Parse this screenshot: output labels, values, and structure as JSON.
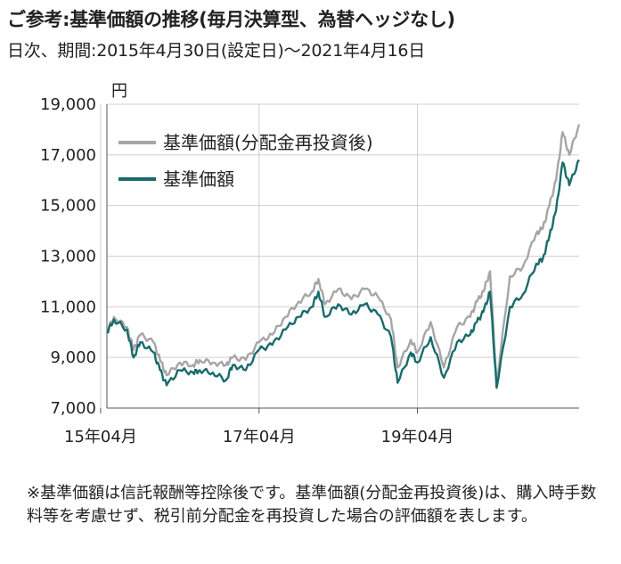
{
  "header": {
    "title": "ご参考:基準価額の推移(毎月決算型、為替ヘッジなし)",
    "subtitle": "日次、期間:2015年4月30日(設定日)〜2021年4月16日"
  },
  "note": "※基準価額は信託報酬等控除後です。基準価額(分配金再投資後)は、購入時手数料等を考慮せず、税引前分配金を再投資した場合の評価額を表します。",
  "chart_data": {
    "type": "line",
    "unit_label": "円",
    "ylim": [
      7000,
      19000
    ],
    "y_ticks": [
      7000,
      9000,
      11000,
      13000,
      15000,
      17000,
      19000
    ],
    "y_tick_labels": [
      "7,000",
      "9,000",
      "11,000",
      "13,000",
      "15,000",
      "17,000",
      "19,000"
    ],
    "x_tick_labels": [
      "15年04月",
      "17年04月",
      "19年04月"
    ],
    "x_tick_dates": [
      "2015-04",
      "2017-04",
      "2019-04"
    ],
    "xlim": [
      "2015-04-30",
      "2021-04-16"
    ],
    "grid": true,
    "legend_position": "top-left",
    "series": [
      {
        "name": "基準価額(分配金再投資後)",
        "color": "#a6a6a6",
        "x": [
          "2015-04-30",
          "2015-06",
          "2015-08",
          "2015-09",
          "2015-10",
          "2015-12",
          "2016-01",
          "2016-02",
          "2016-04",
          "2016-06",
          "2016-07",
          "2016-09",
          "2016-11",
          "2016-12",
          "2017-02",
          "2017-04",
          "2017-06",
          "2017-08",
          "2017-10",
          "2017-12",
          "2018-01",
          "2018-02",
          "2018-04",
          "2018-06",
          "2018-08",
          "2018-10",
          "2018-12",
          "2019-01",
          "2019-03",
          "2019-04",
          "2019-06",
          "2019-08",
          "2019-10",
          "2019-12",
          "2020-01",
          "2020-02",
          "2020-03",
          "2020-04",
          "2020-06",
          "2020-08",
          "2020-10",
          "2020-11",
          "2020-12",
          "2021-01",
          "2021-02",
          "2021-03",
          "2021-04-16"
        ],
        "values": [
          10000,
          10600,
          10200,
          9300,
          9900,
          9600,
          8900,
          8300,
          8800,
          8700,
          8900,
          8800,
          8700,
          9000,
          8900,
          9600,
          9900,
          10600,
          11200,
          11600,
          12100,
          11100,
          11700,
          11300,
          11700,
          11400,
          10500,
          8600,
          9700,
          9200,
          10400,
          8600,
          10200,
          10600,
          11200,
          11600,
          12400,
          8000,
          12200,
          12600,
          13900,
          14100,
          15000,
          16000,
          17900,
          17000,
          18200
        ]
      },
      {
        "name": "基準価額",
        "color": "#1a6b6b",
        "x": [
          "2015-04-30",
          "2015-06",
          "2015-08",
          "2015-09",
          "2015-10",
          "2015-12",
          "2016-01",
          "2016-02",
          "2016-04",
          "2016-06",
          "2016-07",
          "2016-09",
          "2016-11",
          "2016-12",
          "2017-02",
          "2017-04",
          "2017-06",
          "2017-08",
          "2017-10",
          "2017-12",
          "2018-01",
          "2018-02",
          "2018-04",
          "2018-06",
          "2018-08",
          "2018-10",
          "2018-12",
          "2019-01",
          "2019-03",
          "2019-04",
          "2019-06",
          "2019-08",
          "2019-10",
          "2019-12",
          "2020-01",
          "2020-02",
          "2020-03",
          "2020-04",
          "2020-06",
          "2020-08",
          "2020-10",
          "2020-11",
          "2020-12",
          "2021-01",
          "2021-02",
          "2021-03",
          "2021-04-16"
        ],
        "values": [
          10000,
          10500,
          10100,
          9000,
          9600,
          9200,
          8500,
          7900,
          8500,
          8400,
          8500,
          8400,
          8100,
          8700,
          8500,
          9300,
          9500,
          10100,
          10600,
          11000,
          11600,
          10600,
          11100,
          10700,
          11100,
          10700,
          9800,
          8000,
          9200,
          8800,
          9800,
          8200,
          9600,
          9900,
          10400,
          10800,
          11600,
          7800,
          11000,
          11500,
          12700,
          12900,
          13800,
          14800,
          16700,
          15800,
          16800
        ]
      }
    ]
  }
}
